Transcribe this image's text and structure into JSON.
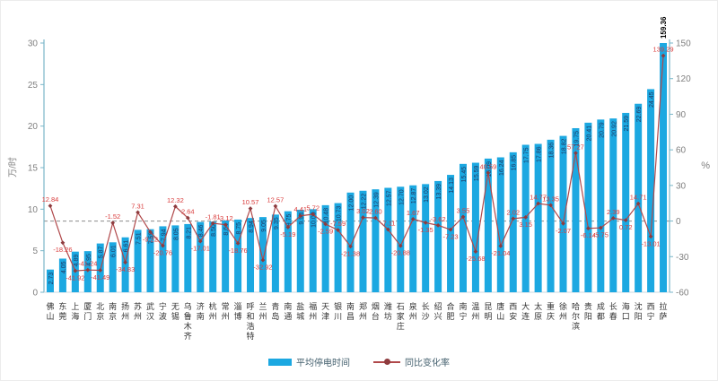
{
  "colors": {
    "bar": "#1CA8E1",
    "bar_label": "#1F3864",
    "last_bar_label": "#000000",
    "line": "#B0484A",
    "marker": "#8E3B3E",
    "line_label": "#D93C3C",
    "axis_line": "#7AB6C8",
    "bottom_axis": "#C9D9E0",
    "tick_text": "#7F7F7F",
    "city_text": "#333333",
    "zero_dash": "#8C8C8C"
  },
  "legend": {
    "bar_label": "平均停电时间",
    "line_label": "同比变化率"
  },
  "chart_data": {
    "type": "bar+line",
    "title": "",
    "xlabel": "",
    "grid": "off",
    "legend_position": "bottom",
    "axes": {
      "left": {
        "unit": "万/时",
        "min": 0,
        "max": 30,
        "step": 5
      },
      "right": {
        "unit": "%",
        "min": -60,
        "max": 150,
        "step": 30
      }
    },
    "zero_reference_line": {
      "axis": "right",
      "value": 0,
      "style": "dashed"
    },
    "categories": [
      "佛山",
      "东莞",
      "上海",
      "厦门",
      "北京",
      "南京",
      "扬州",
      "苏州",
      "武汉",
      "宁波",
      "无锡",
      "乌鲁木齐",
      "济南",
      "杭州",
      "常州",
      "淄博",
      "呼和浩特",
      "兰州",
      "青岛",
      "南通",
      "盐城",
      "福州",
      "天津",
      "银川",
      "南昌",
      "郑州",
      "烟台",
      "潍坊",
      "石家庄",
      "泉州",
      "长沙",
      "绍兴",
      "合肥",
      "南宁",
      "温州",
      "昆明",
      "唐山",
      "西安",
      "大连",
      "太原",
      "重庆",
      "徐州",
      "哈尔滨",
      "贵阳",
      "成都",
      "长春",
      "海口",
      "沈阳",
      "西宁",
      "拉萨"
    ],
    "series": [
      {
        "name": "平均停电时间",
        "type": "bar",
        "axis": "left",
        "values": [
          2.73,
          4.05,
          4.89,
          4.95,
          5.87,
          6.01,
          6.61,
          7.51,
          7.59,
          7.94,
          8.05,
          8.21,
          8.46,
          8.5,
          8.64,
          8.75,
          8.94,
          9.05,
          9.35,
          9.75,
          9.93,
          10.0,
          10.48,
          10.73,
          12.0,
          12.22,
          12.39,
          12.57,
          12.7,
          12.87,
          13.02,
          13.39,
          14.13,
          15.45,
          15.59,
          16.09,
          16.24,
          16.85,
          17.75,
          17.86,
          18.36,
          18.82,
          19.75,
          20.41,
          20.79,
          20.92,
          21.59,
          22.69,
          24.45,
          159.36
        ]
      },
      {
        "name": "同比变化率",
        "type": "line",
        "axis": "right",
        "values": [
          12.84,
          -18.26,
          -41.92,
          -41.24,
          -41.49,
          -1.52,
          -34.83,
          7.31,
          -9.22,
          -20.76,
          12.32,
          2.64,
          -17.01,
          -1.81,
          -3.12,
          -18.76,
          10.57,
          -32.92,
          12.57,
          -5.19,
          4.41,
          5.72,
          -2.59,
          -7.59,
          -21.38,
          3.02,
          2.6,
          -7.11,
          -20.88,
          1.67,
          -1.35,
          -3.62,
          -7.23,
          3.55,
          -25.68,
          40.59,
          -21.04,
          2.02,
          3.15,
          14.77,
          13.35,
          -2.07,
          57.27,
          -6.14,
          -5.75,
          2.39,
          0.72,
          14.71,
          -13.01,
          139.29
        ]
      }
    ]
  }
}
